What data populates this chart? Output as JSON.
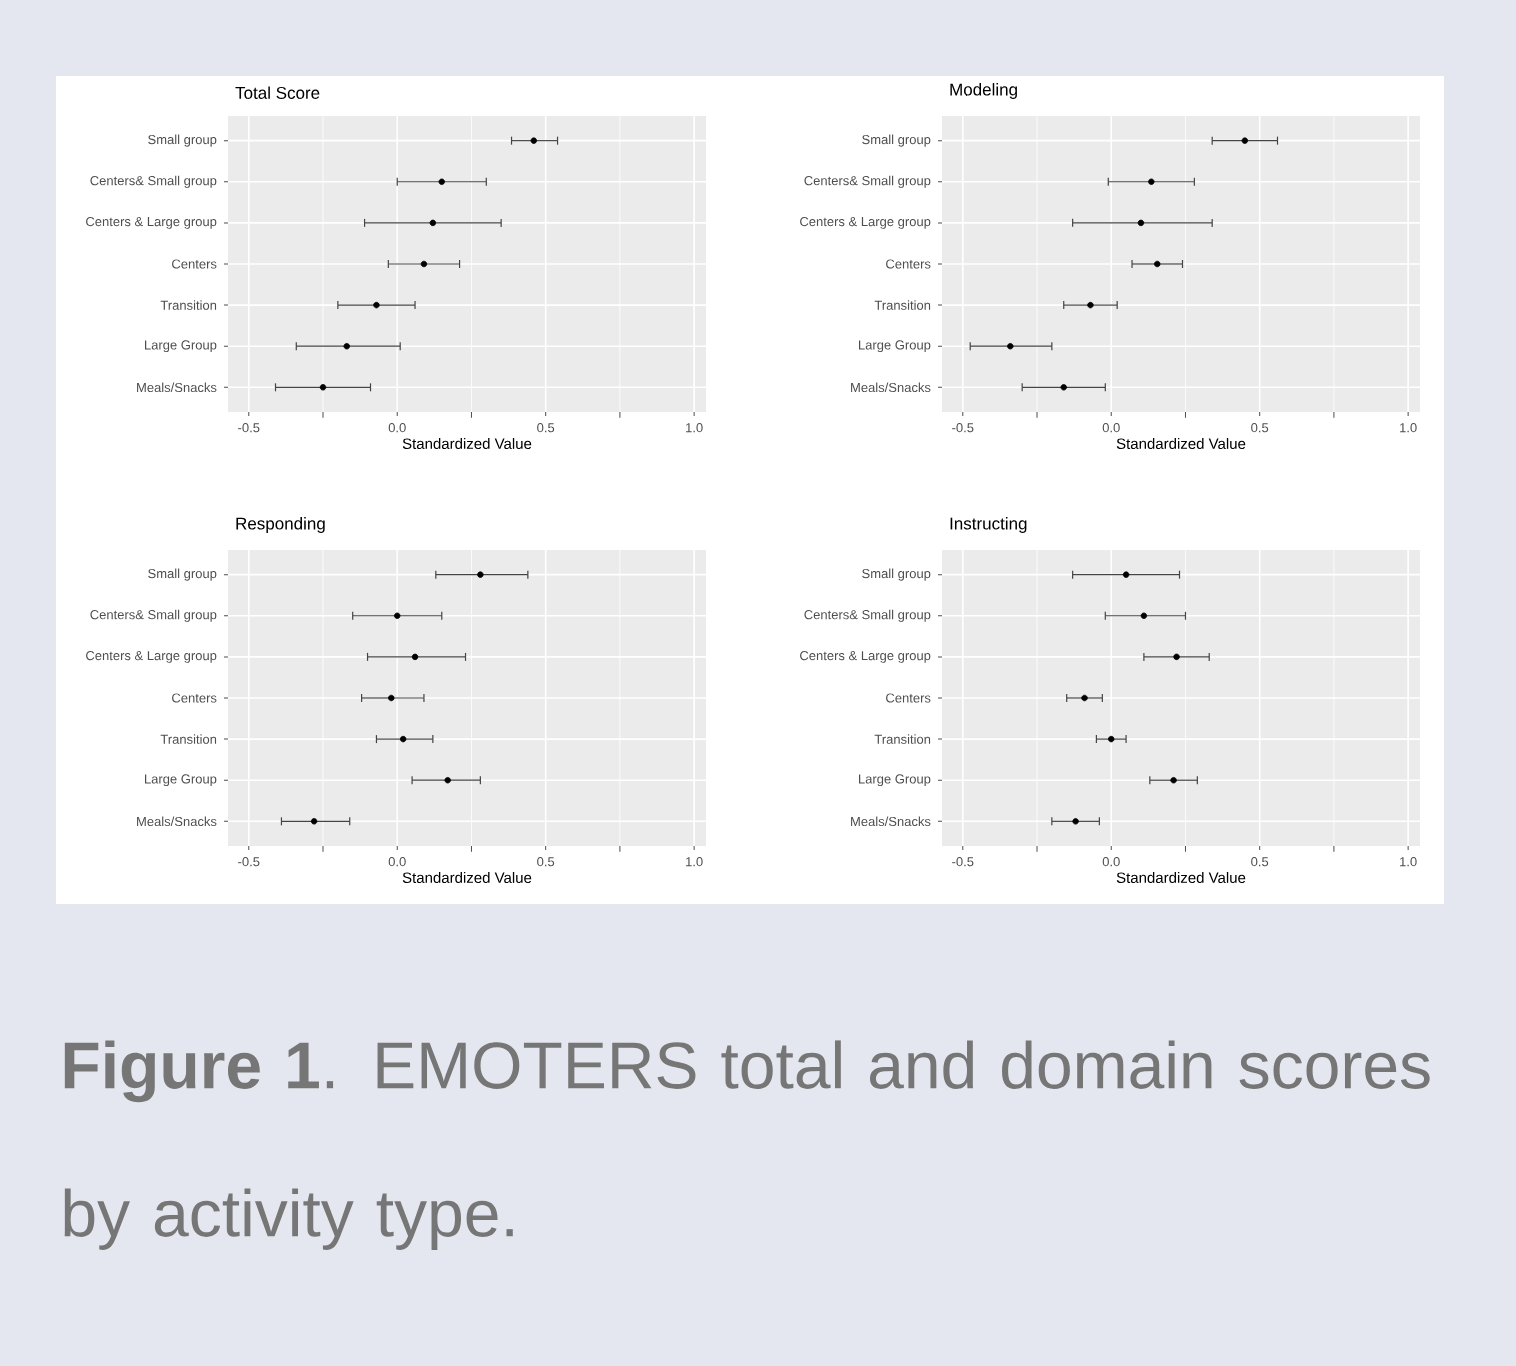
{
  "chart_data": [
    {
      "type": "scatter",
      "orientation": "horizontal",
      "title": "Total Score",
      "xlabel": "Standardized Value",
      "categories": [
        "Small group",
        "Centers& Small group",
        "Centers & Large group",
        "Centers",
        "Transition",
        "Large Group",
        "Meals/Snacks"
      ],
      "values": [
        0.46,
        0.15,
        0.12,
        0.09,
        -0.07,
        -0.17,
        -0.25
      ],
      "errors": [
        [
          0.385,
          0.54
        ],
        [
          0.0,
          0.3
        ],
        [
          -0.11,
          0.35
        ],
        [
          -0.03,
          0.21
        ],
        [
          -0.2,
          0.06
        ],
        [
          -0.34,
          0.01
        ],
        [
          -0.41,
          -0.09
        ]
      ],
      "color": "#000000",
      "marker": "circle",
      "grid": true,
      "xlim": [
        -0.57,
        1.04
      ],
      "xticks": [
        {
          "value": -0.5,
          "label": "-0.5"
        },
        {
          "value": 0,
          "label": "0.0"
        },
        {
          "value": 0.5,
          "label": "0.5"
        },
        {
          "value": 1,
          "label": "1.0"
        }
      ]
    },
    {
      "type": "scatter",
      "orientation": "horizontal",
      "title": "Modeling",
      "xlabel": "Standardized Value",
      "categories": [
        "Small group",
        "Centers& Small group",
        "Centers & Large group",
        "Centers",
        "Transition",
        "Large Group",
        "Meals/Snacks"
      ],
      "values": [
        0.45,
        0.135,
        0.1,
        0.155,
        -0.07,
        -0.34,
        -0.16
      ],
      "errors": [
        [
          0.34,
          0.56
        ],
        [
          -0.01,
          0.28
        ],
        [
          -0.13,
          0.34
        ],
        [
          0.07,
          0.24
        ],
        [
          -0.16,
          0.02
        ],
        [
          -0.475,
          -0.2
        ],
        [
          -0.3,
          -0.02
        ]
      ],
      "color": "#000000",
      "marker": "circle",
      "grid": true,
      "xlim": [
        -0.57,
        1.04
      ],
      "xticks": [
        {
          "value": -0.5,
          "label": "-0.5"
        },
        {
          "value": 0,
          "label": "0.0"
        },
        {
          "value": 0.5,
          "label": "0.5"
        },
        {
          "value": 1,
          "label": "1.0"
        }
      ]
    },
    {
      "type": "scatter",
      "orientation": "horizontal",
      "title": "Responding",
      "xlabel": "Standardized Value",
      "categories": [
        "Small group",
        "Centers& Small group",
        "Centers & Large group",
        "Centers",
        "Transition",
        "Large Group",
        "Meals/Snacks"
      ],
      "values": [
        0.28,
        0.0,
        0.06,
        -0.02,
        0.02,
        0.17,
        -0.28
      ],
      "errors": [
        [
          0.13,
          0.44
        ],
        [
          -0.15,
          0.15
        ],
        [
          -0.1,
          0.23
        ],
        [
          -0.12,
          0.09
        ],
        [
          -0.07,
          0.12
        ],
        [
          0.05,
          0.28
        ],
        [
          -0.39,
          -0.16
        ]
      ],
      "color": "#000000",
      "marker": "circle",
      "grid": true,
      "xlim": [
        -0.57,
        1.04
      ],
      "xticks": [
        {
          "value": -0.5,
          "label": "-0.5"
        },
        {
          "value": 0,
          "label": "0.0"
        },
        {
          "value": 0.5,
          "label": "0.5"
        },
        {
          "value": 1,
          "label": "1.0"
        }
      ]
    },
    {
      "type": "scatter",
      "orientation": "horizontal",
      "title": "Instructing",
      "xlabel": "Standardized Value",
      "categories": [
        "Small group",
        "Centers& Small group",
        "Centers & Large group",
        "Centers",
        "Transition",
        "Large Group",
        "Meals/Snacks"
      ],
      "values": [
        0.05,
        0.11,
        0.22,
        -0.09,
        0.0,
        0.21,
        -0.12
      ],
      "errors": [
        [
          -0.13,
          0.23
        ],
        [
          -0.02,
          0.25
        ],
        [
          0.11,
          0.33
        ],
        [
          -0.15,
          -0.03
        ],
        [
          -0.05,
          0.05
        ],
        [
          0.13,
          0.29
        ],
        [
          -0.2,
          -0.04
        ]
      ],
      "color": "#000000",
      "marker": "circle",
      "grid": true,
      "xlim": [
        -0.57,
        1.04
      ],
      "xticks": [
        {
          "value": -0.5,
          "label": "-0.5"
        },
        {
          "value": 0,
          "label": "0.0"
        },
        {
          "value": 0.5,
          "label": "0.5"
        },
        {
          "value": 1,
          "label": "1.0"
        }
      ],
      "annotations": [
        "**Figure 1**. EMOTERS total and domain scores by activity type."
      ]
    }
  ]
}
